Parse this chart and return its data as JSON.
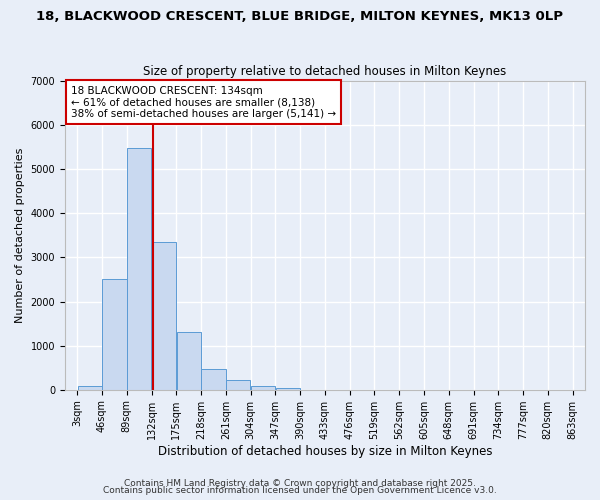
{
  "title": "18, BLACKWOOD CRESCENT, BLUE BRIDGE, MILTON KEYNES, MK13 0LP",
  "subtitle": "Size of property relative to detached houses in Milton Keynes",
  "xlabel": "Distribution of detached houses by size in Milton Keynes",
  "ylabel": "Number of detached properties",
  "bar_color": "#c9d9f0",
  "bar_edge_color": "#5b9bd5",
  "background_color": "#e8eef8",
  "grid_color": "#ffffff",
  "bin_edges": [
    3,
    46,
    89,
    132,
    175,
    218,
    261,
    304,
    347,
    390,
    433,
    476,
    519,
    562,
    605,
    648,
    691,
    734,
    777,
    820,
    863
  ],
  "bin_labels": [
    "3sqm",
    "46sqm",
    "89sqm",
    "132sqm",
    "175sqm",
    "218sqm",
    "261sqm",
    "304sqm",
    "347sqm",
    "390sqm",
    "433sqm",
    "476sqm",
    "519sqm",
    "562sqm",
    "605sqm",
    "648sqm",
    "691sqm",
    "734sqm",
    "777sqm",
    "820sqm",
    "863sqm"
  ],
  "bar_heights": [
    80,
    2500,
    5480,
    3350,
    1300,
    470,
    210,
    80,
    30,
    0,
    0,
    0,
    0,
    0,
    0,
    0,
    0,
    0,
    0,
    0
  ],
  "vline_x": 134,
  "ylim": [
    0,
    7000
  ],
  "annotation_line1": "18 BLACKWOOD CRESCENT: 134sqm",
  "annotation_line2": "← 61% of detached houses are smaller (8,138)",
  "annotation_line3": "38% of semi-detached houses are larger (5,141) →",
  "annotation_box_color": "#ffffff",
  "annotation_box_edge_color": "#cc0000",
  "vline_color": "#cc0000",
  "footer1": "Contains HM Land Registry data © Crown copyright and database right 2025.",
  "footer2": "Contains public sector information licensed under the Open Government Licence v3.0.",
  "title_fontsize": 9.5,
  "subtitle_fontsize": 8.5,
  "xlabel_fontsize": 8.5,
  "ylabel_fontsize": 8,
  "tick_fontsize": 7,
  "annotation_fontsize": 7.5,
  "footer_fontsize": 6.5
}
